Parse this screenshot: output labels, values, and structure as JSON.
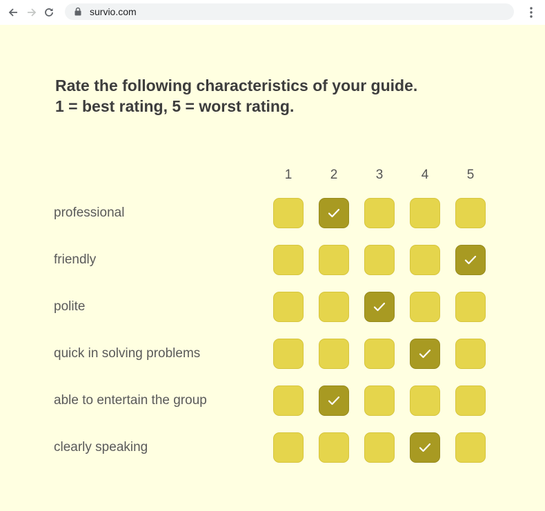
{
  "browser": {
    "url": "survio.com",
    "icons": [
      "back-arrow-icon",
      "forward-arrow-icon",
      "reload-icon",
      "lock-icon",
      "kebab-menu-icon"
    ]
  },
  "survey": {
    "question_line1": "Rate the following characteristics of your guide.",
    "question_line2": "1 = best rating, 5 = worst rating.",
    "columns": [
      "1",
      "2",
      "3",
      "4",
      "5"
    ],
    "rows": [
      {
        "label": "professional",
        "selected": 2
      },
      {
        "label": "friendly",
        "selected": 5
      },
      {
        "label": "polite",
        "selected": 3
      },
      {
        "label": "quick in solving problems",
        "selected": 4
      },
      {
        "label": "able to entertain the group",
        "selected": 2
      },
      {
        "label": "clearly speaking",
        "selected": 4
      }
    ]
  },
  "colors": {
    "page_background": "#ffffe1",
    "cell": "#e5d54c",
    "cell_checked": "#a89a22"
  }
}
